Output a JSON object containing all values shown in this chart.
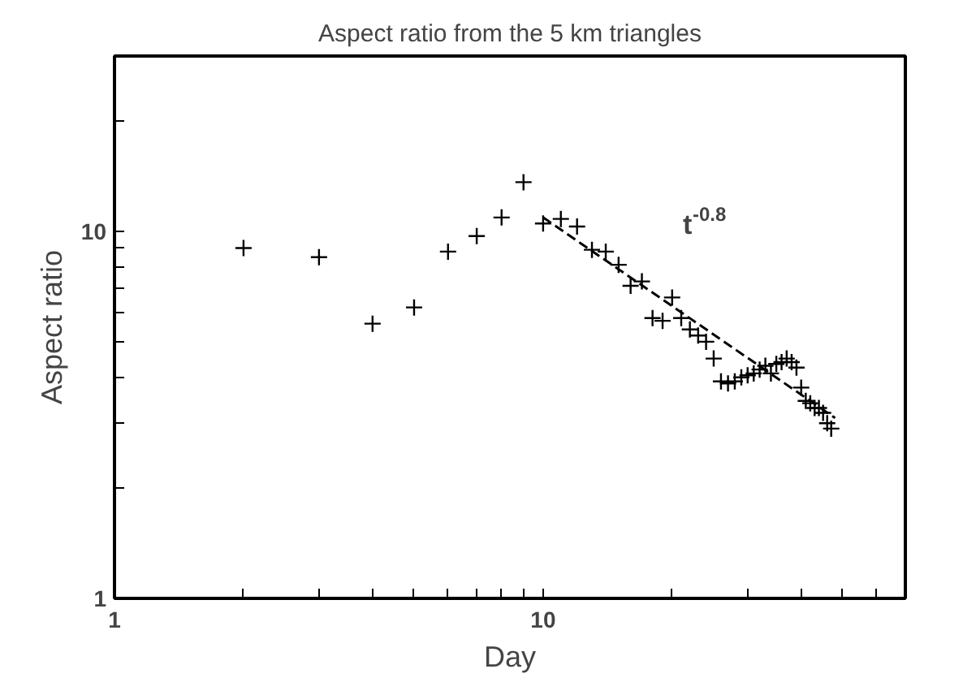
{
  "chart_data": {
    "type": "scatter",
    "title": "Aspect ratio from the 5 km triangles",
    "xlabel": "Day",
    "ylabel": "Aspect ratio",
    "log": "xy",
    "grid": false,
    "xlim": [
      1,
      70
    ],
    "ylim": [
      1,
      30
    ],
    "xticks": [
      1,
      {
        "value": 2,
        "label": null
      },
      {
        "value": 3,
        "label": null
      },
      {
        "value": 4,
        "label": null
      },
      {
        "value": 5,
        "label": null
      },
      {
        "value": 6,
        "label": null
      },
      {
        "value": 7,
        "label": null
      },
      {
        "value": 8,
        "label": null
      },
      {
        "value": 9,
        "label": null
      },
      10,
      {
        "value": 20,
        "label": null
      },
      {
        "value": 30,
        "label": null
      },
      {
        "value": 40,
        "label": null
      },
      {
        "value": 50,
        "label": null
      },
      {
        "value": 60,
        "label": null
      }
    ],
    "yticks": [
      1,
      {
        "value": 2,
        "label": null
      },
      {
        "value": 3,
        "label": null
      },
      {
        "value": 4,
        "label": null
      },
      {
        "value": 5,
        "label": null
      },
      {
        "value": 6,
        "label": null
      },
      {
        "value": 7,
        "label": null
      },
      {
        "value": 8,
        "label": null
      },
      {
        "value": 9,
        "label": null
      },
      10,
      {
        "value": 20,
        "label": null
      },
      {
        "value": 30,
        "label": null
      }
    ],
    "series": [
      {
        "color": "#000000",
        "marker": "cross",
        "x": [
          2,
          3,
          4,
          5,
          6,
          7,
          8,
          9,
          10,
          11,
          12,
          13,
          14,
          15,
          16,
          17,
          18,
          19,
          20,
          21,
          22,
          23,
          24,
          25,
          26,
          27,
          28,
          29,
          30,
          31,
          32,
          33,
          34,
          35,
          36,
          37,
          38,
          39,
          40,
          41,
          42,
          43,
          44,
          45,
          46,
          47
        ],
        "values": [
          9.0,
          8.5,
          5.6,
          6.2,
          8.8,
          9.7,
          10.9,
          13.6,
          10.5,
          10.8,
          10.3,
          8.9,
          8.8,
          8.1,
          7.1,
          7.3,
          5.8,
          5.7,
          6.6,
          5.8,
          5.4,
          5.2,
          5.0,
          4.5,
          3.9,
          3.85,
          3.9,
          4.0,
          4.05,
          4.1,
          4.2,
          4.3,
          4.1,
          4.35,
          4.4,
          4.5,
          4.4,
          4.25,
          3.75,
          3.45,
          3.4,
          3.3,
          3.3,
          3.2,
          3.0,
          2.9
        ]
      },
      {
        "type": "line",
        "color": "#000000",
        "line_style": "dashed",
        "x": [
          10,
          48
        ],
        "values": [
          10.9,
          3.1
        ]
      }
    ],
    "annotations": [
      "t$^{-0.8}$"
    ]
  }
}
